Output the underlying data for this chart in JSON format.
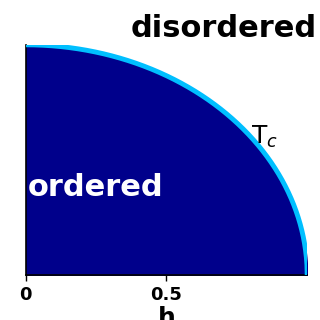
{
  "xlabel": "h",
  "xlim": [
    0,
    1.0
  ],
  "ylim": [
    0,
    1.0
  ],
  "ordered_color": "#00008B",
  "disordered_color": "#ffffff",
  "curve_color": "#00BFFF",
  "curve_linewidth": 3.5,
  "ordered_label": "ordered",
  "disordered_label": "disordered",
  "tc_label": "T$_c$",
  "x_ticks": [
    0,
    0.5
  ],
  "x_tick_labels": [
    "0",
    "0.5"
  ],
  "background_color": "#ffffff",
  "ordered_text_color": "#ffffff",
  "disordered_text_color": "#000000",
  "ordered_fontsize": 22,
  "disordered_fontsize": 22,
  "tc_fontsize": 18,
  "xlabel_fontsize": 18,
  "figsize": [
    3.2,
    3.2
  ],
  "dpi": 100
}
